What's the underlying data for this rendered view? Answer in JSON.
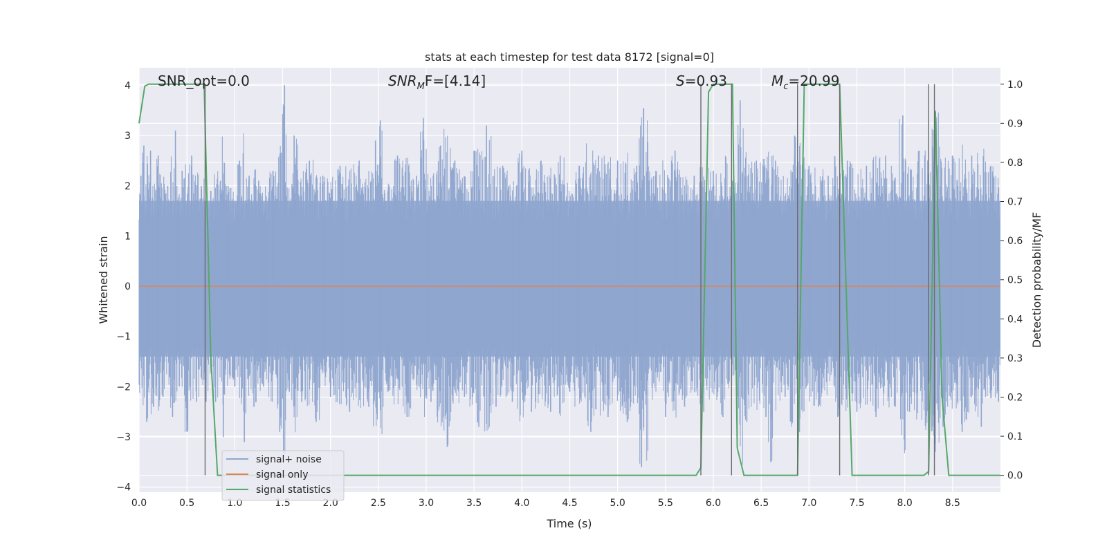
{
  "chart_data": {
    "type": "line",
    "title": "stats at each timestep for test data 8172 [signal=0]",
    "xlabel": "Time (s)",
    "ylabel": "Whitened strain",
    "y2label": "Detection probability/MF",
    "xlim": [
      0.0,
      9.0
    ],
    "ylim": [
      -4.1,
      4.35
    ],
    "y2lim": [
      -0.043,
      1.042
    ],
    "xticks": [
      "0.0",
      "0.5",
      "1.0",
      "1.5",
      "2.0",
      "2.5",
      "3.0",
      "3.5",
      "4.0",
      "4.5",
      "5.0",
      "5.5",
      "6.0",
      "6.5",
      "7.0",
      "7.5",
      "8.0",
      "8.5"
    ],
    "yticks": [
      "4",
      "3",
      "2",
      "1",
      "0",
      "−1",
      "−2",
      "−3",
      "−4"
    ],
    "y2ticks": [
      "1.0",
      "0.9",
      "0.8",
      "0.7",
      "0.6",
      "0.5",
      "0.4",
      "0.3",
      "0.2",
      "0.1",
      "0.0"
    ],
    "grid": true,
    "legend_position": "lower-left",
    "annotations": {
      "snr_opt": "SNR_opt=0.0",
      "snr_mf_main": "SNR",
      "snr_mf_sub": "M",
      "snr_mf_rest": "F=[4.14]",
      "s_main": "S",
      "s_rest": "=0.93",
      "mc_main": "M",
      "mc_sub": "c",
      "mc_rest": "=20.99"
    },
    "series": [
      {
        "name": "signal+ noise",
        "color": "#8fa6cf",
        "noise_band": [
          -1.4,
          1.7
        ],
        "peak_samples": [
          [
            0.02,
            2.2
          ],
          [
            0.05,
            2.8
          ],
          [
            0.08,
            -2.7
          ],
          [
            0.12,
            2.7
          ],
          [
            0.15,
            -2.4
          ],
          [
            0.2,
            2.6
          ],
          [
            0.25,
            -2.2
          ],
          [
            0.3,
            2.0
          ],
          [
            0.35,
            -2.6
          ],
          [
            0.38,
            3.1
          ],
          [
            0.42,
            -2.0
          ],
          [
            0.45,
            2.3
          ],
          [
            0.5,
            -2.9
          ],
          [
            0.55,
            2.6
          ],
          [
            0.6,
            -2.3
          ],
          [
            0.65,
            2.0
          ],
          [
            0.7,
            -2.3
          ],
          [
            0.75,
            1.9
          ],
          [
            0.8,
            -2.3
          ],
          [
            0.85,
            2.1
          ],
          [
            0.88,
            -3.0
          ],
          [
            0.93,
            2.0
          ],
          [
            1.0,
            -2.0
          ],
          [
            1.05,
            2.5
          ],
          [
            1.1,
            -3.1
          ],
          [
            1.15,
            2.2
          ],
          [
            1.2,
            -2.4
          ],
          [
            1.25,
            2.1
          ],
          [
            1.3,
            -2.0
          ],
          [
            1.4,
            2.3
          ],
          [
            1.47,
            -2.9
          ],
          [
            1.52,
            4.0
          ],
          [
            1.57,
            -2.1
          ],
          [
            1.62,
            3.0
          ],
          [
            1.7,
            -2.3
          ],
          [
            1.78,
            2.5
          ],
          [
            1.85,
            -2.7
          ],
          [
            1.92,
            2.2
          ],
          [
            2.0,
            -2.2
          ],
          [
            2.1,
            2.4
          ],
          [
            2.2,
            -2.5
          ],
          [
            2.3,
            2.5
          ],
          [
            2.4,
            -2.4
          ],
          [
            2.47,
            2.9
          ],
          [
            2.52,
            3.3
          ],
          [
            2.6,
            -2.1
          ],
          [
            2.7,
            2.6
          ],
          [
            2.8,
            -2.6
          ],
          [
            2.9,
            2.2
          ],
          [
            2.97,
            3.35
          ],
          [
            3.05,
            -2.3
          ],
          [
            3.15,
            2.8
          ],
          [
            3.22,
            -3.2
          ],
          [
            3.3,
            2.5
          ],
          [
            3.4,
            -2.2
          ],
          [
            3.5,
            2.7
          ],
          [
            3.55,
            -2.8
          ],
          [
            3.63,
            3.2
          ],
          [
            3.73,
            -2.4
          ],
          [
            3.8,
            2.4
          ],
          [
            3.9,
            -2.3
          ],
          [
            4.0,
            2.7
          ],
          [
            4.1,
            -2.5
          ],
          [
            4.2,
            2.5
          ],
          [
            4.3,
            -2.5
          ],
          [
            4.4,
            2.6
          ],
          [
            4.5,
            -2.1
          ],
          [
            4.6,
            2.4
          ],
          [
            4.72,
            -2.9
          ],
          [
            4.8,
            2.6
          ],
          [
            4.9,
            -2.6
          ],
          [
            5.0,
            2.5
          ],
          [
            5.1,
            -2.7
          ],
          [
            5.2,
            2.4
          ],
          [
            5.25,
            -3.6
          ],
          [
            5.4,
            2.3
          ],
          [
            5.5,
            -2.6
          ],
          [
            5.6,
            2.7
          ],
          [
            5.7,
            -2.4
          ],
          [
            5.8,
            2.2
          ],
          [
            5.9,
            -2.5
          ],
          [
            6.0,
            2.3
          ],
          [
            6.1,
            -2.6
          ],
          [
            6.2,
            2.1
          ],
          [
            6.28,
            3.7
          ],
          [
            6.35,
            -2.7
          ],
          [
            6.45,
            2.5
          ],
          [
            6.55,
            -2.6
          ],
          [
            6.6,
            -3.5
          ],
          [
            6.65,
            2.5
          ],
          [
            6.75,
            -2.2
          ],
          [
            6.85,
            3.0
          ],
          [
            6.9,
            -2.9
          ],
          [
            7.0,
            2.4
          ],
          [
            7.1,
            -2.4
          ],
          [
            7.2,
            2.2
          ],
          [
            7.3,
            -2.6
          ],
          [
            7.4,
            2.5
          ],
          [
            7.5,
            -2.5
          ],
          [
            7.6,
            2.4
          ],
          [
            7.7,
            -2.6
          ],
          [
            7.8,
            2.6
          ],
          [
            7.9,
            -2.4
          ],
          [
            7.98,
            3.4
          ],
          [
            8.05,
            -2.5
          ],
          [
            8.15,
            2.7
          ],
          [
            8.25,
            -2.9
          ],
          [
            8.32,
            3.5
          ],
          [
            8.4,
            -2.8
          ],
          [
            8.5,
            2.6
          ],
          [
            8.6,
            -2.9
          ],
          [
            8.7,
            2.6
          ],
          [
            8.8,
            -2.8
          ],
          [
            8.9,
            2.4
          ],
          [
            8.98,
            -2.3
          ]
        ]
      },
      {
        "name": "signal only",
        "color": "#dd8452",
        "x": [
          0.0,
          9.0
        ],
        "y": [
          0.0,
          0.0
        ]
      },
      {
        "name": "signal statistics",
        "color": "#55a868",
        "axis": "right",
        "x": [
          0.0,
          0.06,
          0.1,
          0.2,
          0.68,
          0.75,
          0.82,
          5.82,
          5.87,
          5.95,
          6.0,
          6.15,
          6.2,
          6.25,
          6.32,
          6.85,
          6.88,
          6.95,
          7.32,
          7.45,
          8.2,
          8.25,
          8.32,
          8.39,
          8.46,
          9.0
        ],
        "y": [
          0.9,
          0.995,
          1.0,
          1.0,
          1.0,
          0.3,
          0.0,
          0.0,
          0.02,
          0.98,
          1.0,
          1.0,
          1.0,
          0.07,
          0.0,
          0.0,
          0.0,
          1.0,
          1.0,
          0.0,
          0.0,
          0.01,
          0.93,
          0.2,
          0.0,
          0.0
        ]
      }
    ],
    "vertical_markers": [
      0.69,
      5.87,
      6.19,
      6.88,
      7.32,
      8.25,
      8.31
    ]
  }
}
